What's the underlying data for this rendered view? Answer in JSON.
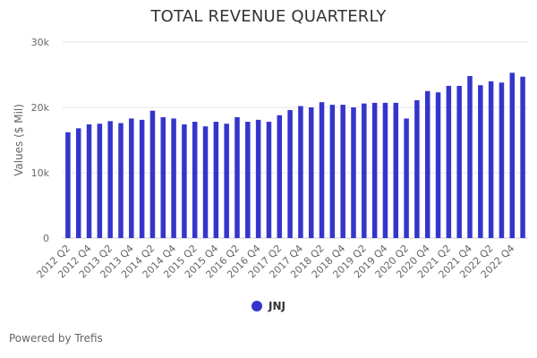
{
  "chart_data": {
    "type": "bar",
    "title": "TOTAL REVENUE QUARTERLY",
    "xlabel": "",
    "ylabel": "Values ($ Mil)",
    "ylim": [
      0,
      30000
    ],
    "yticks": [
      0,
      10000,
      20000,
      30000
    ],
    "ytick_labels": [
      "0",
      "10k",
      "20k",
      "30k"
    ],
    "grid": true,
    "legend_position": "bottom-center",
    "categories": [
      "2012 Q2",
      "2012 Q3",
      "2012 Q4",
      "2013 Q1",
      "2013 Q2",
      "2013 Q3",
      "2013 Q4",
      "2014 Q1",
      "2014 Q2",
      "2014 Q3",
      "2014 Q4",
      "2015 Q1",
      "2015 Q2",
      "2015 Q3",
      "2015 Q4",
      "2016 Q1",
      "2016 Q2",
      "2016 Q3",
      "2016 Q4",
      "2017 Q1",
      "2017 Q2",
      "2017 Q3",
      "2017 Q4",
      "2018 Q1",
      "2018 Q2",
      "2018 Q3",
      "2018 Q4",
      "2019 Q1",
      "2019 Q2",
      "2019 Q3",
      "2019 Q4",
      "2020 Q1",
      "2020 Q2",
      "2020 Q3",
      "2020 Q4",
      "2021 Q1",
      "2021 Q2",
      "2021 Q3",
      "2021 Q4",
      "2022 Q1",
      "2022 Q2",
      "2022 Q3",
      "2022 Q4",
      "2023 Q1"
    ],
    "xtick_labels_shown": [
      "2012 Q2",
      "2012 Q4",
      "2013 Q2",
      "2013 Q4",
      "2014 Q2",
      "2014 Q4",
      "2015 Q2",
      "2015 Q4",
      "2016 Q2",
      "2016 Q4",
      "2017 Q2",
      "2017 Q4",
      "2018 Q2",
      "2018 Q4",
      "2019 Q2",
      "2019 Q4",
      "2020 Q2",
      "2020 Q4",
      "2021 Q2",
      "2021 Q4",
      "2022 Q2",
      "2022 Q4"
    ],
    "series": [
      {
        "name": "JNJ",
        "color": "#3535cc",
        "values": [
          16200,
          16800,
          17400,
          17500,
          17900,
          17600,
          18300,
          18100,
          19500,
          18500,
          18300,
          17400,
          17800,
          17100,
          17800,
          17500,
          18500,
          17800,
          18100,
          17800,
          18800,
          19600,
          20200,
          20000,
          20800,
          20400,
          20400,
          20000,
          20600,
          20700,
          20700,
          20700,
          18300,
          21100,
          22500,
          22300,
          23300,
          23300,
          24800,
          23400,
          24000,
          23800,
          25300,
          24700
        ]
      }
    ]
  },
  "footer": {
    "credit": "Powered by Trefis"
  }
}
